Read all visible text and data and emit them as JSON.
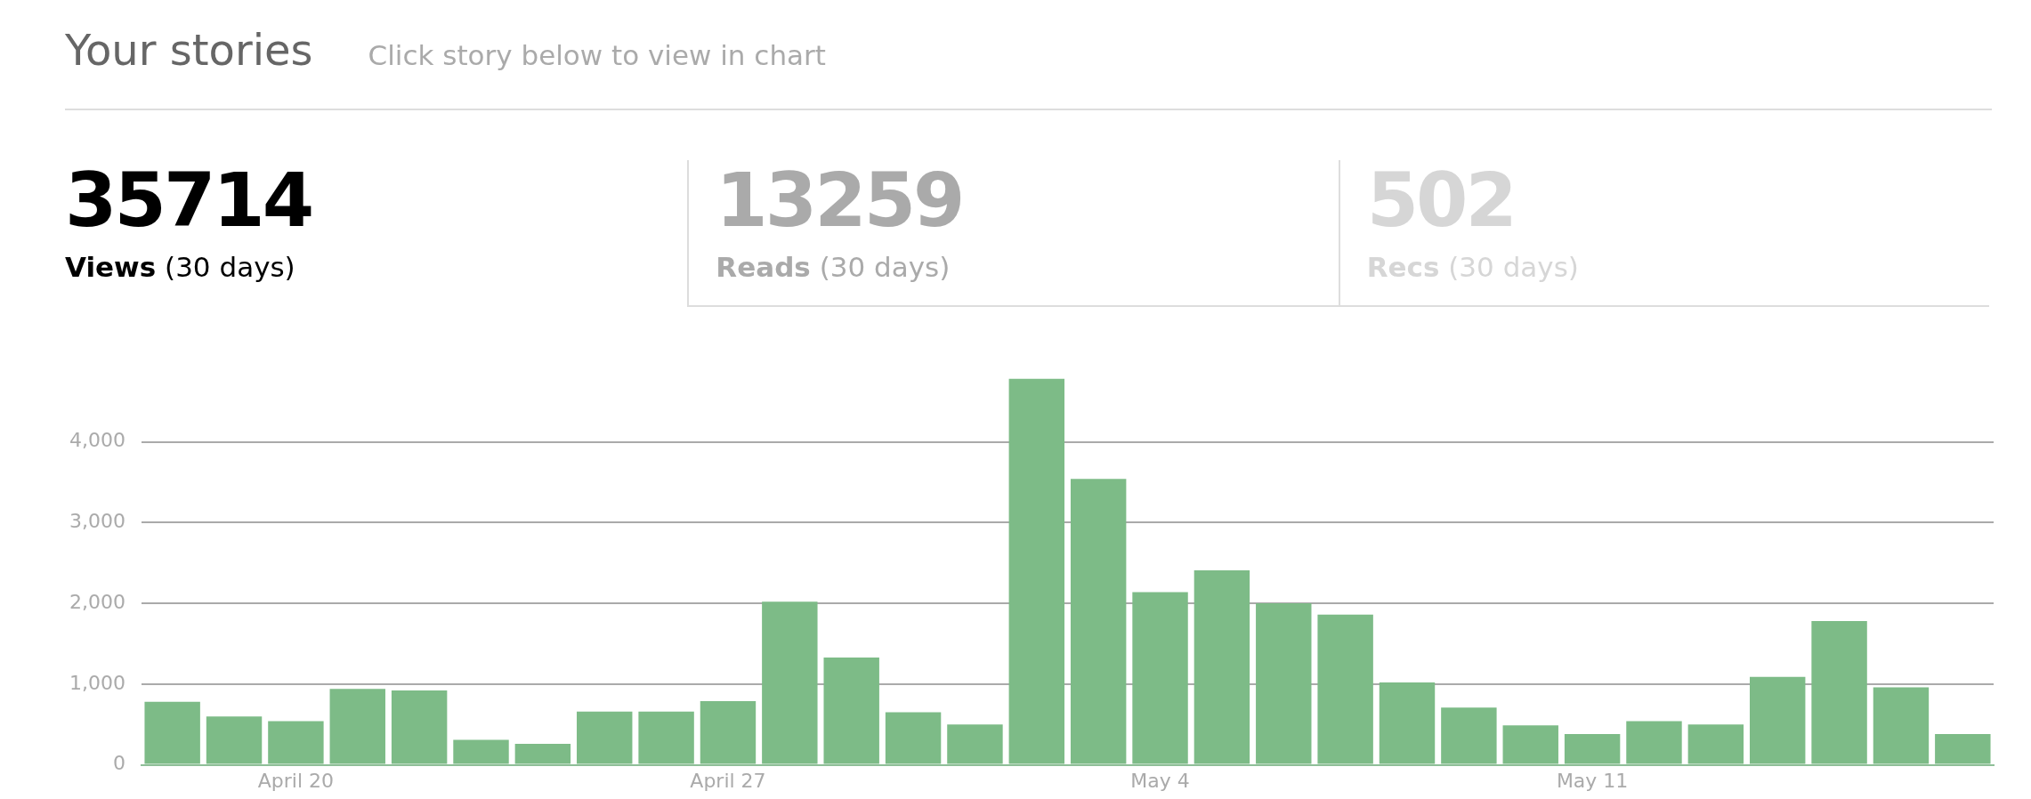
{
  "chart_data": {
    "type": "bar",
    "title": "Your stories",
    "subtitle": "Click story below to view in chart",
    "annotations": [
      "35714",
      "Views (30 days)",
      "13259",
      "Reads (30 days)",
      "502",
      "Recs (30 days)"
    ],
    "categories": [
      null,
      null,
      "April 20",
      null,
      null,
      null,
      null,
      null,
      null,
      "April 27",
      null,
      null,
      null,
      null,
      null,
      null,
      "May 4",
      null,
      null,
      null,
      null,
      null,
      null,
      "May 11",
      null,
      null,
      null,
      null,
      null,
      null
    ],
    "values": [
      780,
      600,
      540,
      940,
      920,
      310,
      260,
      660,
      660,
      790,
      2020,
      1330,
      650,
      500,
      4780,
      3540,
      2140,
      2410,
      2000,
      1860,
      1020,
      710,
      490,
      380,
      540,
      500,
      1090,
      1780,
      960,
      380
    ],
    "color": "#7dbb87",
    "ylim": [
      0,
      4800
    ],
    "yticks": [
      {
        "value": 0,
        "label": "0"
      },
      {
        "value": 1000,
        "label": "1,000"
      },
      {
        "value": 2000,
        "label": "2,000"
      },
      {
        "value": 3000,
        "label": "3,000"
      },
      {
        "value": 4000,
        "label": "4,000"
      }
    ],
    "grid": "y",
    "legend": false
  }
}
